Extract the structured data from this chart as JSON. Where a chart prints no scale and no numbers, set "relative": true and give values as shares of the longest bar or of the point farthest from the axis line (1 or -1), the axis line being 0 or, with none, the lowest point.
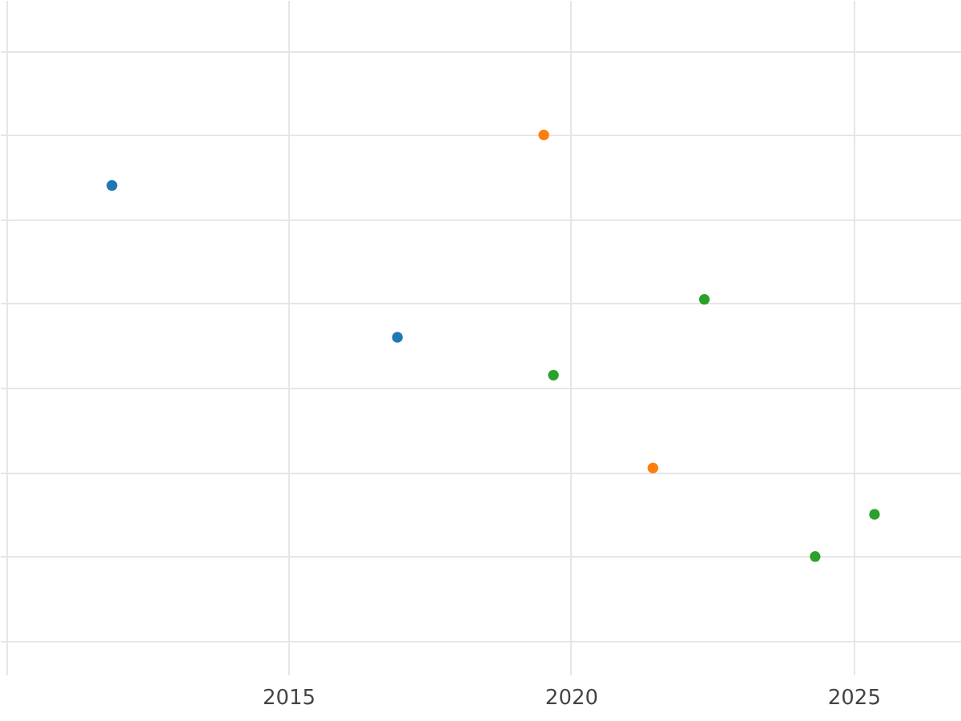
{
  "chart_data": {
    "type": "scatter",
    "relative": true,
    "grid": true,
    "marker": "circle",
    "legend": false,
    "tick_labels": "x",
    "xlim": [
      2009.9,
      2026.9
    ],
    "xticks": [
      {
        "value": 2010,
        "label": null
      },
      2015,
      2020,
      2025
    ],
    "series": [
      {
        "color": "#1f77b4",
        "x": [
          2011.88,
          2016.93
        ],
        "values": [
          0.88,
          0.52
        ]
      },
      {
        "color": "#ff7f0e",
        "x": [
          2019.52,
          2021.45
        ],
        "values": [
          1,
          0.21
        ]
      },
      {
        "color": "#2ca02c",
        "x": [
          2019.69,
          2022.36,
          2024.32,
          2025.37
        ],
        "values": [
          0.43,
          0.61,
          0,
          0.1
        ]
      }
    ]
  }
}
